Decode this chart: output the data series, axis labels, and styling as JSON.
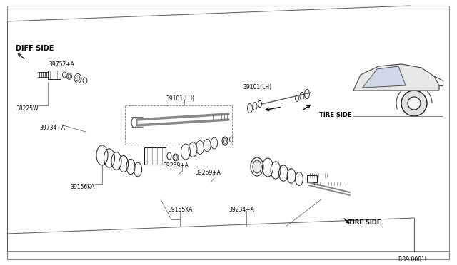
{
  "bg_color": "#ffffff",
  "line_color": "#1a1a1a",
  "label_color": "#000000",
  "diagram_number": "R39 0001I",
  "font_family": "DejaVu Sans",
  "label_fontsize": 6.0,
  "labels": {
    "diff_side": "DIFF SIDE",
    "tire_side_r": "TIRE SIDE",
    "tire_side_b": "TIRE SIDE",
    "p39752A": "39752+A",
    "p38225W": "38225W",
    "p39734A": "39734+A",
    "p39156KA": "39156KA",
    "p39101LH_l": "39101(LH)",
    "p39101LH_r": "39101(LH)",
    "p39269A_l": "39269+A",
    "p39269A_r": "39269+A",
    "p39155KA": "39155KA",
    "p39234A": "39234+A"
  }
}
